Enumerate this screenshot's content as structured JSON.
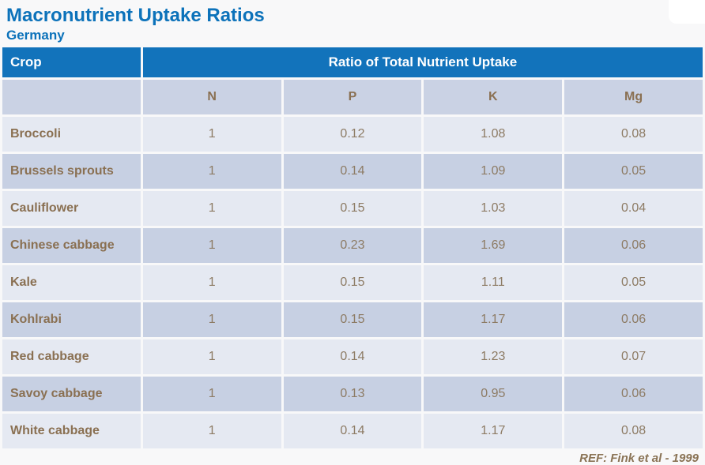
{
  "header": {
    "title": "Macronutrient Uptake Ratios",
    "subtitle": "Germany"
  },
  "footer": {
    "reference": "REF: Fink et al - 1999"
  },
  "colors": {
    "accent_blue": "#0C72BA",
    "table_header_bg": "#1273BB",
    "row_dark": "#C7D0E3",
    "row_light": "#E5E9F2",
    "crop_text_brown": "#8A7052",
    "value_text_brown": "#8D7B64",
    "page_bg": "#F8F8F9"
  },
  "table": {
    "crop_header": "Crop",
    "group_header": "Ratio of Total Nutrient Uptake",
    "nutrients": [
      "N",
      "P",
      "K",
      "Mg"
    ],
    "rows": [
      {
        "crop": "Broccoli",
        "values": [
          "1",
          "0.12",
          "1.08",
          "0.08"
        ]
      },
      {
        "crop": "Brussels sprouts",
        "values": [
          "1",
          "0.14",
          "1.09",
          "0.05"
        ]
      },
      {
        "crop": "Cauliflower",
        "values": [
          "1",
          "0.15",
          "1.03",
          "0.04"
        ]
      },
      {
        "crop": "Chinese cabbage",
        "values": [
          "1",
          "0.23",
          "1.69",
          "0.06"
        ]
      },
      {
        "crop": "Kale",
        "values": [
          "1",
          "0.15",
          "1.11",
          "0.05"
        ]
      },
      {
        "crop": "Kohlrabi",
        "values": [
          "1",
          "0.15",
          "1.17",
          "0.06"
        ]
      },
      {
        "crop": "Red cabbage",
        "values": [
          "1",
          "0.14",
          "1.23",
          "0.07"
        ]
      },
      {
        "crop": "Savoy cabbage",
        "values": [
          "1",
          "0.13",
          "0.95",
          "0.06"
        ]
      },
      {
        "crop": "White cabbage",
        "values": [
          "1",
          "0.14",
          "1.17",
          "0.08"
        ]
      }
    ]
  },
  "chart_data": {
    "type": "table",
    "title": "Macronutrient Uptake Ratios",
    "subtitle": "Germany",
    "column_group_header": "Ratio of Total Nutrient Uptake",
    "columns": [
      "Crop",
      "N",
      "P",
      "K",
      "Mg"
    ],
    "rows": [
      [
        "Broccoli",
        1,
        0.12,
        1.08,
        0.08
      ],
      [
        "Brussels sprouts",
        1,
        0.14,
        1.09,
        0.05
      ],
      [
        "Cauliflower",
        1,
        0.15,
        1.03,
        0.04
      ],
      [
        "Chinese cabbage",
        1,
        0.23,
        1.69,
        0.06
      ],
      [
        "Kale",
        1,
        0.15,
        1.11,
        0.05
      ],
      [
        "Kohlrabi",
        1,
        0.15,
        1.17,
        0.06
      ],
      [
        "Red cabbage",
        1,
        0.14,
        1.23,
        0.07
      ],
      [
        "Savoy cabbage",
        1,
        0.13,
        0.95,
        0.06
      ],
      [
        "White cabbage",
        1,
        0.14,
        1.17,
        0.08
      ]
    ],
    "reference": "REF: Fink et al - 1999"
  }
}
